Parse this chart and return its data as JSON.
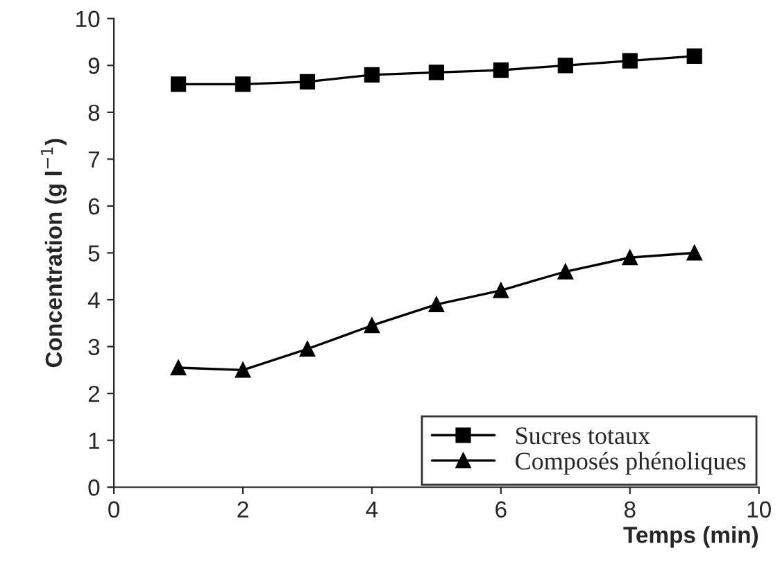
{
  "chart_data": {
    "type": "line",
    "xlabel": "Temps (min)",
    "ylabel": "Concentration (g l$^{−1}$)",
    "x": [
      1,
      2,
      3,
      4,
      5,
      6,
      7,
      8,
      9
    ],
    "series": [
      {
        "name": "Sucres totaux",
        "color": "#000000",
        "marker": "square",
        "values": [
          8.6,
          8.6,
          8.65,
          8.8,
          8.85,
          8.9,
          9.0,
          9.1,
          9.2
        ]
      },
      {
        "name": "Composés phénoliques",
        "color": "#000000",
        "marker": "triangle",
        "values": [
          2.55,
          2.5,
          2.95,
          3.45,
          3.9,
          4.2,
          4.6,
          4.9,
          5.0
        ]
      }
    ],
    "xlim": [
      0,
      10
    ],
    "xticks": [
      0,
      2,
      4,
      6,
      8,
      10
    ],
    "ylim": [
      0,
      10
    ],
    "yticks": [
      0,
      1,
      2,
      3,
      4,
      5,
      6,
      7,
      8,
      9,
      10
    ],
    "grid": false,
    "legend": "bottom right",
    "line_style": "solid"
  }
}
